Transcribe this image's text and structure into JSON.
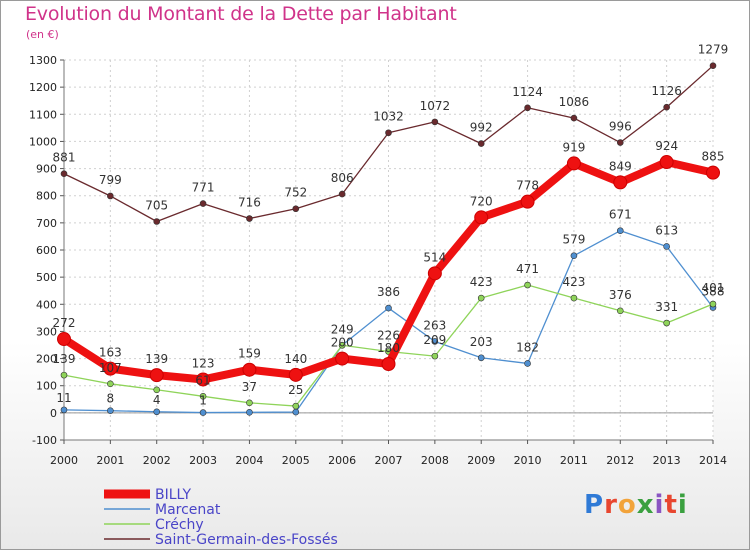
{
  "title": "Evolution du Montant de la Dette par Habitant",
  "unit": "(en €)",
  "logo": {
    "text": "Proxiti",
    "colors": [
      "#2f7ad6",
      "#e8462f",
      "#f2a33a",
      "#3aa03f",
      "#8a54c2",
      "#e8462f",
      "#3aa03f"
    ]
  },
  "chart_data": {
    "type": "line",
    "title": "Evolution du Montant de la Dette par Habitant",
    "ylabel": "(en €)",
    "xlabel": "",
    "x": [
      2000,
      2001,
      2002,
      2003,
      2004,
      2005,
      2006,
      2007,
      2008,
      2009,
      2010,
      2011,
      2012,
      2013,
      2014
    ],
    "ylim": [
      -100,
      1300
    ],
    "yticks": [
      -100,
      0,
      100,
      200,
      300,
      400,
      500,
      600,
      700,
      800,
      900,
      1000,
      1100,
      1200,
      1300
    ],
    "grid": true,
    "legend": "bottom-left",
    "series": [
      {
        "name": "BILLY",
        "color": "#ee1111",
        "values": [
          272,
          163,
          139,
          123,
          159,
          140,
          200,
          180,
          514,
          720,
          778,
          919,
          849,
          924,
          885
        ]
      },
      {
        "name": "Marcenat",
        "color": "#4f8fd0",
        "values": [
          11,
          8,
          4,
          1,
          2,
          3,
          249,
          386,
          263,
          203,
          182,
          579,
          671,
          613,
          388
        ]
      },
      {
        "name": "Créchy",
        "color": "#8fd45a",
        "values": [
          139,
          107,
          85,
          61,
          37,
          25,
          249,
          226,
          209,
          423,
          471,
          423,
          376,
          331,
          401
        ]
      },
      {
        "name": "Saint-Germain-des-Fossés",
        "color": "#6a2a2e",
        "values": [
          881,
          799,
          705,
          771,
          716,
          752,
          806,
          1032,
          1072,
          992,
          1124,
          1086,
          996,
          1126,
          1279
        ]
      }
    ],
    "data_labels": [
      [
        "272",
        "163",
        "139",
        "123",
        "159",
        "140",
        "200",
        "180",
        "514",
        "720",
        "778",
        "919",
        "849",
        "924",
        "885"
      ],
      [
        "11",
        "8",
        "4",
        "1",
        "",
        "",
        "",
        "386",
        "263",
        "203",
        "182",
        "579",
        "671",
        "613",
        "388"
      ],
      [
        "139",
        "107",
        "",
        "61",
        "37",
        "25",
        "249",
        "226",
        "209",
        "423",
        "471",
        "423",
        "376",
        "331",
        "401"
      ],
      [
        "881",
        "799",
        "705",
        "771",
        "716",
        "752",
        "806",
        "1032",
        "1072",
        "992",
        "1124",
        "1086",
        "996",
        "1126",
        "1279"
      ]
    ]
  }
}
